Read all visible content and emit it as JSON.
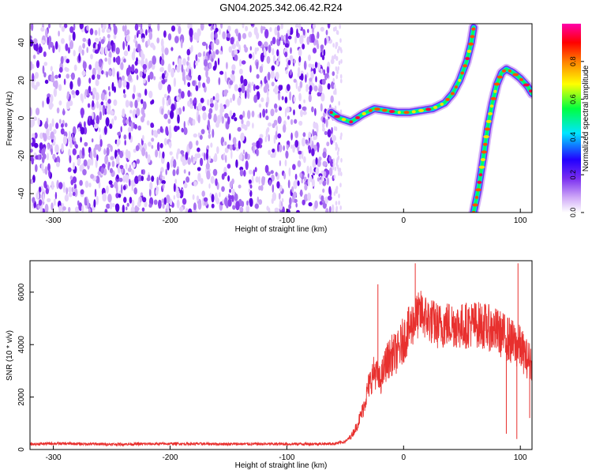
{
  "figure_title": "GN04.2025.342.06.42.R24",
  "chart_data": [
    {
      "type": "heatmap",
      "title": "GN04.2025.342.06.42.R24",
      "xlabel": "Height of straight line (km)",
      "ylabel": "Frequency (Hz)",
      "xlim": [
        -320,
        110
      ],
      "ylim": [
        -50,
        50
      ],
      "x_ticks": [
        -300,
        -200,
        -100,
        0,
        100
      ],
      "y_ticks": [
        -40,
        -20,
        0,
        20,
        40
      ],
      "grid": false,
      "noise_region_x": [
        -320,
        -60
      ],
      "colorbar": {
        "label": "Normalized spectral amplitude",
        "range": [
          0,
          1
        ],
        "ticks": [
          0.0,
          0.2,
          0.4,
          0.6,
          0.8
        ],
        "colormap": [
          "#ffffff",
          "#9b4ff0",
          "#2200ff",
          "#00e5ff",
          "#00ff40",
          "#ffff00",
          "#ff8000",
          "#ff0000",
          "#ff00aa"
        ]
      },
      "ridges": [
        {
          "x": [
            -62,
            -55,
            -45,
            -35,
            -25,
            -15,
            -5,
            5,
            15,
            25,
            35,
            42,
            48,
            54,
            58,
            60
          ],
          "y": [
            3,
            0,
            -2,
            2,
            5,
            4,
            3,
            3,
            4,
            5,
            8,
            13,
            20,
            30,
            40,
            48
          ]
        },
        {
          "x": [
            60,
            64,
            68,
            72,
            76,
            80,
            84,
            88,
            94,
            100,
            106,
            110
          ],
          "y": [
            -50,
            -38,
            -22,
            -5,
            8,
            18,
            24,
            26,
            24,
            21,
            17,
            13
          ]
        }
      ]
    },
    {
      "type": "line",
      "xlabel": "Height of straight line (km)",
      "ylabel": "SNR (10 * v/v)",
      "xlim": [
        -320,
        110
      ],
      "ylim": [
        0,
        7200
      ],
      "x_ticks": [
        -300,
        -200,
        -100,
        0,
        100
      ],
      "y_ticks": [
        0,
        2000,
        4000,
        6000
      ],
      "grid": false,
      "series": [
        {
          "color": "#e8302e",
          "x": [
            -320,
            -300,
            -250,
            -200,
            -150,
            -100,
            -60,
            -50,
            -45,
            -40,
            -35,
            -30,
            -25,
            -20,
            -15,
            -10,
            -5,
            0,
            5,
            10,
            15,
            20,
            30,
            40,
            50,
            60,
            70,
            80,
            90,
            95,
            100,
            105,
            110
          ],
          "y": [
            200,
            230,
            200,
            220,
            210,
            210,
            220,
            300,
            500,
            900,
            1500,
            2400,
            3000,
            2600,
            3300,
            3600,
            3700,
            4200,
            4600,
            5000,
            5200,
            5000,
            4700,
            4800,
            4700,
            4800,
            4700,
            4500,
            4200,
            4000,
            3900,
            3500,
            3300
          ],
          "spikes": [
            [
              -22,
              6300
            ],
            [
              10,
              7100
            ],
            [
              98,
              7100
            ],
            [
              88,
              600
            ],
            [
              97,
              400
            ],
            [
              108,
              1200
            ]
          ]
        }
      ]
    }
  ]
}
